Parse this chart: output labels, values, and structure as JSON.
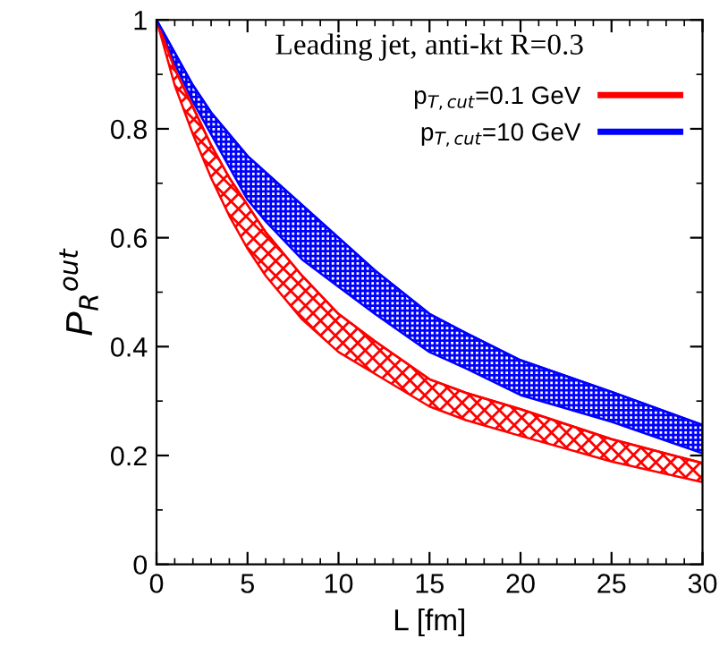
{
  "chart_data": {
    "type": "line",
    "ylabel": "P$_{R}$$^{out}$",
    "xlabel": "L [fm]",
    "annotations": [
      "Leading jet, anti-kt R=0.3"
    ],
    "x": [
      0,
      1,
      2,
      3,
      4,
      5,
      6,
      8,
      10,
      12,
      15,
      17,
      20,
      25,
      30
    ],
    "series": [
      {
        "name": "p$_{T,cut}$=0.1 GeV",
        "color": "#ff0000",
        "values": [
          1,
          0.91,
          0.84,
          0.77,
          0.71,
          0.66,
          0.61,
          0.53,
          0.46,
          0.41,
          0.34,
          0.315,
          0.285,
          0.23,
          0.186
        ],
        "upper": [
          1,
          0.91,
          0.84,
          0.77,
          0.71,
          0.66,
          0.61,
          0.53,
          0.46,
          0.41,
          0.34,
          0.315,
          0.285,
          0.23,
          0.186
        ],
        "lower": [
          1,
          0.88,
          0.79,
          0.71,
          0.64,
          0.58,
          0.53,
          0.45,
          0.39,
          0.35,
          0.29,
          0.265,
          0.236,
          0.189,
          0.151
        ]
      },
      {
        "name": "p$_{T,cut}$=10 GeV",
        "color": "#0000ff",
        "values": [
          1,
          0.94,
          0.88,
          0.83,
          0.79,
          0.75,
          0.72,
          0.66,
          0.6,
          0.54,
          0.46,
          0.425,
          0.375,
          0.317,
          0.256
        ],
        "upper": [
          1,
          0.94,
          0.88,
          0.83,
          0.79,
          0.75,
          0.72,
          0.66,
          0.6,
          0.54,
          0.46,
          0.425,
          0.375,
          0.317,
          0.256
        ],
        "lower": [
          1,
          0.92,
          0.85,
          0.79,
          0.73,
          0.67,
          0.63,
          0.56,
          0.51,
          0.46,
          0.39,
          0.36,
          0.311,
          0.262,
          0.204
        ]
      }
    ],
    "xlim": [
      0,
      30
    ],
    "ylim": [
      0,
      1
    ],
    "xticks": [
      0,
      5,
      10,
      15,
      20,
      25,
      30
    ],
    "yticks": [
      0,
      0.2,
      0.4,
      0.6,
      0.8,
      1
    ],
    "grid": false,
    "legend": "top right"
  }
}
